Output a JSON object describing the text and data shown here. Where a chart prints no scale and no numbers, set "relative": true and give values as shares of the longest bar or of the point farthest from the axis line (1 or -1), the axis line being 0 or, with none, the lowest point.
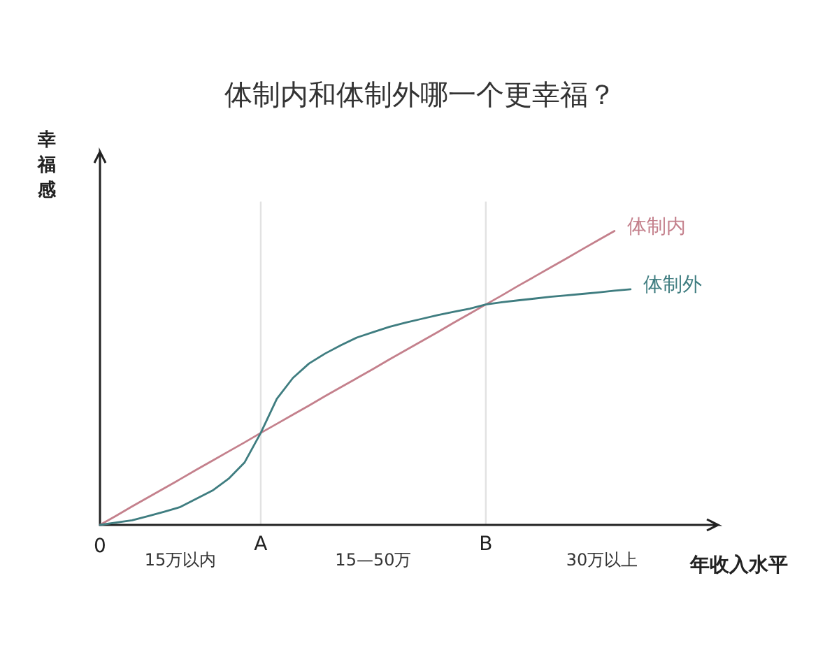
{
  "chart_data": {
    "type": "line",
    "title": "体制内和体制外哪一个更幸福？",
    "xlabel": "年收入水平",
    "ylabel": "幸福感",
    "relative": true,
    "categories": [
      "0",
      null,
      null,
      null,
      null,
      null,
      null,
      null,
      null,
      null,
      "A",
      null,
      null,
      null,
      null,
      null,
      null,
      null,
      null,
      null,
      null,
      null,
      null,
      null,
      "B",
      null,
      null,
      null,
      null,
      null,
      null,
      null,
      null,
      null
    ],
    "tick_labels": "x",
    "ref_lines": [
      {
        "axis": "x",
        "value": "A",
        "color": "#e2e2e2"
      },
      {
        "axis": "x",
        "value": "B",
        "color": "#e2e2e2"
      }
    ],
    "annotations": [
      "15万以内",
      "15—50万",
      "30万以上"
    ],
    "series": [
      {
        "name": "体制内",
        "color": "#c4808c",
        "values": [
          0,
          0.031,
          0.063,
          0.094,
          0.125,
          0.156,
          0.188,
          0.219,
          0.25,
          0.281,
          0.313,
          0.344,
          0.375,
          0.406,
          0.438,
          0.469,
          0.5,
          0.531,
          0.563,
          0.594,
          0.625,
          0.656,
          0.688,
          0.719,
          0.75,
          0.781,
          0.813,
          0.844,
          0.875,
          0.906,
          0.938,
          0.969,
          1,
          null
        ]
      },
      {
        "name": "体制外",
        "color": "#3f7d80",
        "values": [
          0,
          0.008,
          0.016,
          0.03,
          0.045,
          0.061,
          0.089,
          0.117,
          0.157,
          0.213,
          0.313,
          0.429,
          0.5,
          0.549,
          0.583,
          0.612,
          0.638,
          0.656,
          0.674,
          0.688,
          0.701,
          0.714,
          0.725,
          0.736,
          0.75,
          0.758,
          0.764,
          0.77,
          0.776,
          0.781,
          0.786,
          0.791,
          0.797,
          0.802
        ]
      }
    ]
  }
}
